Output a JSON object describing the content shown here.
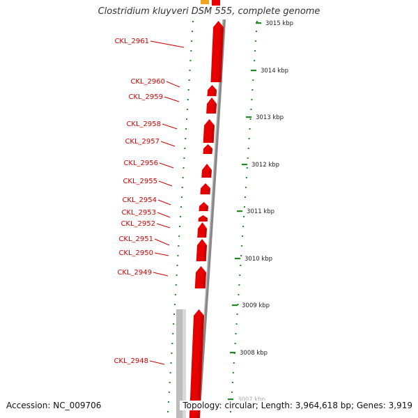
{
  "title": "Clostridium kluyveri DSM 555, complete genome",
  "accession": "Accession: NC_009706",
  "summary": "Topology: circular; Length: 3,964,618 bp; Genes: 3,919",
  "colors": {
    "gene": "#e60000",
    "gene_shade": "#b00000",
    "neighbor_gene": "#f2a31b",
    "label": "#cc0000",
    "backbone": "#888888",
    "tick": "#1f8a1f",
    "ruler_text": "#222222"
  },
  "scale_ticks": [
    {
      "label": "3015 kbp",
      "kbp": 3015
    },
    {
      "label": "3014 kbp",
      "kbp": 3014
    },
    {
      "label": "3013 kbp",
      "kbp": 3013
    },
    {
      "label": "3012 kbp",
      "kbp": 3012
    },
    {
      "label": "3011 kbp",
      "kbp": 3011
    },
    {
      "label": "3010 kbp",
      "kbp": 3010
    },
    {
      "label": "3009 kbp",
      "kbp": 3009
    },
    {
      "label": "3008 kbp",
      "kbp": 3008
    },
    {
      "label": "3007 kbp",
      "kbp": 3007
    }
  ],
  "genes": [
    {
      "name": "CKL_2961"
    },
    {
      "name": "CKL_2960"
    },
    {
      "name": "CKL_2959"
    },
    {
      "name": "CKL_2958"
    },
    {
      "name": "CKL_2957"
    },
    {
      "name": "CKL_2956"
    },
    {
      "name": "CKL_2955"
    },
    {
      "name": "CKL_2954"
    },
    {
      "name": "CKL_2953"
    },
    {
      "name": "CKL_2952"
    },
    {
      "name": "CKL_2951"
    },
    {
      "name": "CKL_2950"
    },
    {
      "name": "CKL_2949"
    },
    {
      "name": "CKL_2948"
    }
  ]
}
